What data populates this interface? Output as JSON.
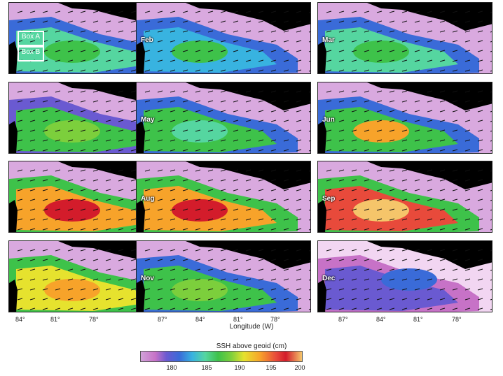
{
  "panels": [
    {
      "month": "",
      "palette": "jan"
    },
    {
      "month": "Feb",
      "palette": "feb"
    },
    {
      "month": "Mar",
      "palette": "mar"
    },
    {
      "month": "",
      "palette": "apr"
    },
    {
      "month": "May",
      "palette": "may"
    },
    {
      "month": "Jun",
      "palette": "jun"
    },
    {
      "month": "",
      "palette": "jul"
    },
    {
      "month": "Aug",
      "palette": "aug"
    },
    {
      "month": "Sep",
      "palette": "sep"
    },
    {
      "month": "",
      "palette": "oct"
    },
    {
      "month": "Nov",
      "palette": "nov"
    },
    {
      "month": "Dec",
      "palette": "dec"
    }
  ],
  "boxes": {
    "a": "Box A",
    "b": "Box B"
  },
  "x_ticks": [
    {
      "col": 0,
      "labels": [
        "84°",
        "81°",
        "78°"
      ]
    },
    {
      "col": 1,
      "labels": [
        "87°",
        "84°",
        "81°",
        "78°"
      ]
    },
    {
      "col": 2,
      "labels": [
        "87°",
        "84°",
        "81°",
        "78°"
      ]
    }
  ],
  "x_axis_title": "Longitude (W)",
  "colorbar": {
    "title": "SSH above geoid (cm)",
    "ticks": [
      "180",
      "185",
      "190",
      "195",
      "200"
    ]
  },
  "colors": {
    "land": "#000000",
    "no_data": "#ffffff",
    "low": "#d1a2d9",
    "mid": "#3ec24a",
    "high": "#d31c2b"
  }
}
